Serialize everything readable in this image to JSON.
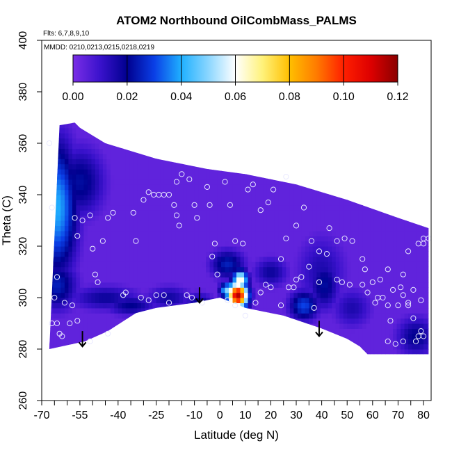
{
  "chart_data": {
    "type": "heatmap",
    "title": "ATOM2 Northbound OilCombMass_PALMS",
    "subtitle_flights": "Flts: 6,7,8,9,10",
    "subtitle_dates": "MMDD: 0210,0213,0215,0218,0219",
    "xlabel": "Latitude (deg N)",
    "ylabel": "Theta (C)",
    "xlim": [
      -70,
      83
    ],
    "ylim": [
      260,
      400
    ],
    "x_tick_labels": [
      "-70",
      "-55",
      "-40",
      "-25",
      "-10",
      "0",
      "10",
      "20",
      "30",
      "40",
      "50",
      "60",
      "70",
      "80"
    ],
    "x_tick_values": [
      -70,
      -55,
      -40,
      -25,
      -10,
      0,
      10,
      20,
      30,
      40,
      50,
      60,
      70,
      80
    ],
    "x_minor_ticks": [
      -65,
      -60,
      -50,
      -45,
      -35,
      -30,
      -20,
      -15,
      -5,
      5,
      15,
      25,
      35,
      45,
      55,
      65,
      75
    ],
    "y_tick_labels": [
      "260",
      "280",
      "300",
      "320",
      "340",
      "360",
      "380",
      "400"
    ],
    "y_tick_values": [
      260,
      280,
      300,
      320,
      340,
      360,
      380,
      400
    ],
    "colorbar": {
      "tick_labels": [
        "0.00",
        "0.02",
        "0.04",
        "0.06",
        "0.08",
        "0.10",
        "0.12"
      ],
      "range": [
        0,
        0.12
      ],
      "stops": [
        {
          "v": 0.0,
          "c": "#7a2ee6"
        },
        {
          "v": 0.01,
          "c": "#3a12cc"
        },
        {
          "v": 0.02,
          "c": "#00008f"
        },
        {
          "v": 0.03,
          "c": "#0a3fe6"
        },
        {
          "v": 0.04,
          "c": "#1fb0ff"
        },
        {
          "v": 0.05,
          "c": "#8ad6ff"
        },
        {
          "v": 0.06,
          "c": "#ffffff"
        },
        {
          "v": 0.07,
          "c": "#fff27a"
        },
        {
          "v": 0.08,
          "c": "#ffbf00"
        },
        {
          "v": 0.09,
          "c": "#ff7b00"
        },
        {
          "v": 0.1,
          "c": "#ff1f00"
        },
        {
          "v": 0.11,
          "c": "#dd0000"
        },
        {
          "v": 0.12,
          "c": "#8a0000"
        }
      ]
    },
    "arrows": [
      {
        "lat": -54,
        "theta": 286
      },
      {
        "lat": -8,
        "theta": 303
      },
      {
        "lat": 39,
        "theta": 290
      }
    ],
    "data_top_boundary": [
      [
        -63,
        367
      ],
      [
        -57,
        368
      ],
      [
        -55,
        366
      ],
      [
        -45,
        360
      ],
      [
        -35,
        357
      ],
      [
        -25,
        354
      ],
      [
        -15,
        352
      ],
      [
        -5,
        350
      ],
      [
        10,
        348
      ],
      [
        30,
        344
      ],
      [
        50,
        338
      ],
      [
        70,
        331
      ],
      [
        82,
        327
      ]
    ],
    "data_bottom_boundary": [
      [
        -67,
        280
      ],
      [
        -53,
        283
      ],
      [
        -44,
        287
      ],
      [
        -33,
        294
      ],
      [
        -25,
        296
      ],
      [
        -10,
        298
      ],
      [
        0,
        300
      ],
      [
        10,
        296
      ],
      [
        25,
        293
      ],
      [
        40,
        288
      ],
      [
        50,
        284
      ],
      [
        55,
        281
      ],
      [
        58,
        278
      ],
      [
        82,
        278
      ]
    ],
    "features": [
      {
        "lat": -64,
        "theta": 335,
        "value": 0.04,
        "rlat": 8,
        "rth": 26
      },
      {
        "lat": -64,
        "theta": 305,
        "value": 0.025,
        "rlat": 8,
        "rth": 10
      },
      {
        "lat": -55,
        "theta": 345,
        "value": 0.022,
        "rlat": 10,
        "rth": 14
      },
      {
        "lat": -45,
        "theta": 300,
        "value": 0.018,
        "rlat": 14,
        "rth": 5
      },
      {
        "lat": -35,
        "theta": 297,
        "value": 0.02,
        "rlat": 10,
        "rth": 4
      },
      {
        "lat": -20,
        "theta": 300,
        "value": 0.017,
        "rlat": 9,
        "rth": 5
      },
      {
        "lat": -8,
        "theta": 297,
        "value": 0.022,
        "rlat": 6,
        "rth": 5
      },
      {
        "lat": 7,
        "theta": 301,
        "value": 0.115,
        "rlat": 4,
        "rth": 5
      },
      {
        "lat": 3,
        "theta": 303,
        "value": 0.05,
        "rlat": 3,
        "rth": 3
      },
      {
        "lat": 8,
        "theta": 307,
        "value": 0.065,
        "rlat": 3,
        "rth": 4
      },
      {
        "lat": 3,
        "theta": 313,
        "value": 0.025,
        "rlat": 7,
        "rth": 6
      },
      {
        "lat": 20,
        "theta": 310,
        "value": 0.018,
        "rlat": 7,
        "rth": 6
      },
      {
        "lat": 33,
        "theta": 297,
        "value": 0.03,
        "rlat": 6,
        "rth": 6
      },
      {
        "lat": 41,
        "theta": 305,
        "value": 0.022,
        "rlat": 6,
        "rth": 10
      },
      {
        "lat": 52,
        "theta": 296,
        "value": 0.015,
        "rlat": 8,
        "rth": 8
      },
      {
        "lat": 77,
        "theta": 285,
        "value": 0.02,
        "rlat": 8,
        "rth": 8
      },
      {
        "lat": 40,
        "theta": 310,
        "value": 0.015,
        "rlat": 10,
        "rth": 15
      }
    ],
    "points": [
      [
        -67,
        360
      ],
      [
        -66,
        335
      ],
      [
        -64,
        308
      ],
      [
        -65,
        300
      ],
      [
        -66,
        290
      ],
      [
        -64,
        290
      ],
      [
        -62,
        285
      ],
      [
        -59,
        290
      ],
      [
        -57,
        331
      ],
      [
        -56,
        324
      ],
      [
        -54,
        330
      ],
      [
        -51,
        332
      ],
      [
        -50,
        319
      ],
      [
        -49,
        309
      ],
      [
        -48,
        306
      ],
      [
        -46,
        322
      ],
      [
        -44,
        331
      ],
      [
        -42,
        333
      ],
      [
        -38,
        301
      ],
      [
        -37,
        302
      ],
      [
        -33,
        322
      ],
      [
        -34,
        333
      ],
      [
        -30,
        338
      ],
      [
        -28,
        341
      ],
      [
        -26,
        340
      ],
      [
        -24,
        340
      ],
      [
        -22,
        340
      ],
      [
        -20,
        340
      ],
      [
        -17,
        345
      ],
      [
        -15,
        348
      ],
      [
        -18,
        336
      ],
      [
        -17,
        332
      ],
      [
        -16,
        328
      ],
      [
        -12,
        346
      ],
      [
        -10,
        336
      ],
      [
        -9,
        331
      ],
      [
        -5,
        343
      ],
      [
        -4,
        336
      ],
      [
        -2,
        321
      ],
      [
        -3,
        316
      ],
      [
        -1,
        309
      ],
      [
        2,
        345
      ],
      [
        4,
        336
      ],
      [
        6,
        322
      ],
      [
        9,
        321
      ],
      [
        11,
        342
      ],
      [
        13,
        344
      ],
      [
        16,
        334
      ],
      [
        19,
        337
      ],
      [
        21,
        342
      ],
      [
        26,
        347
      ],
      [
        26,
        323
      ],
      [
        24,
        315
      ],
      [
        30,
        328
      ],
      [
        33,
        335
      ],
      [
        36,
        322
      ],
      [
        39,
        318
      ],
      [
        42,
        317
      ],
      [
        43,
        327
      ],
      [
        46,
        322
      ],
      [
        49,
        323
      ],
      [
        52,
        322
      ],
      [
        56,
        315
      ],
      [
        57,
        311
      ],
      [
        60,
        306
      ],
      [
        62,
        300
      ],
      [
        63,
        307
      ],
      [
        66,
        311
      ],
      [
        66,
        297
      ],
      [
        70,
        297
      ],
      [
        72,
        301
      ],
      [
        74,
        298
      ],
      [
        76,
        292
      ],
      [
        78,
        285
      ],
      [
        80,
        285
      ],
      [
        80,
        323
      ],
      [
        78,
        321
      ],
      [
        74,
        318
      ],
      [
        72,
        309
      ],
      [
        71,
        304
      ],
      [
        68,
        303
      ],
      [
        67,
        291
      ],
      [
        66,
        283
      ],
      [
        64,
        300
      ],
      [
        61,
        298
      ],
      [
        58,
        302
      ],
      [
        56,
        305
      ],
      [
        51,
        305
      ],
      [
        48,
        306
      ],
      [
        46,
        307
      ],
      [
        39,
        306
      ],
      [
        37,
        296
      ],
      [
        35,
        312
      ],
      [
        32,
        308
      ],
      [
        30,
        307
      ],
      [
        29,
        304
      ],
      [
        27,
        304
      ],
      [
        24,
        297
      ],
      [
        20,
        304
      ],
      [
        18,
        305
      ],
      [
        16,
        302
      ],
      [
        14,
        298
      ],
      [
        10,
        293
      ],
      [
        6,
        297
      ],
      [
        3,
        299
      ],
      [
        -7,
        298
      ],
      [
        -11,
        300
      ],
      [
        -13,
        301
      ],
      [
        -20,
        298
      ],
      [
        -22,
        301
      ],
      [
        -25,
        301
      ],
      [
        -28,
        299
      ],
      [
        -31,
        300
      ],
      [
        -44,
        286
      ],
      [
        -51,
        283
      ],
      [
        -56,
        291
      ],
      [
        -58,
        297
      ],
      [
        -61,
        298
      ],
      [
        -63,
        286
      ],
      [
        72,
        283
      ],
      [
        77,
        283
      ],
      [
        79,
        287
      ],
      [
        79,
        299
      ],
      [
        76,
        303
      ],
      [
        74,
        297
      ],
      [
        69,
        282
      ],
      [
        80,
        321
      ],
      [
        82,
        323
      ]
    ]
  }
}
